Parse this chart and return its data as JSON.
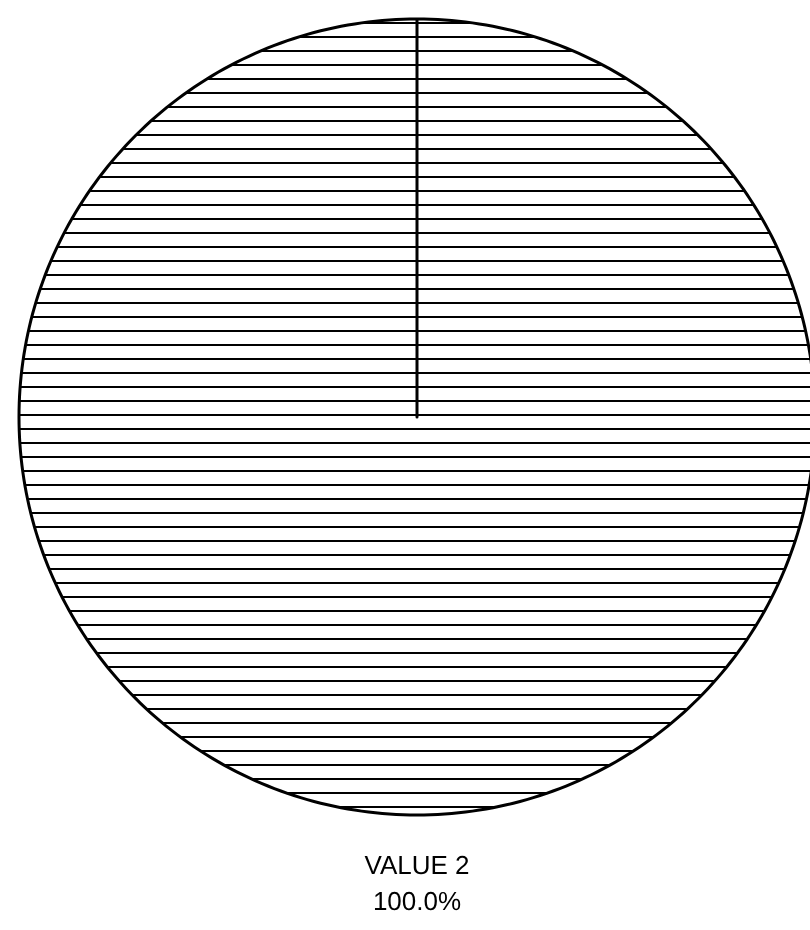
{
  "chart_data": {
    "type": "pie",
    "categories": [
      "VALUE 2"
    ],
    "values": [
      100
    ],
    "colors": [
      "#ffffff"
    ],
    "value_labels": [
      "100.0%"
    ]
  }
}
